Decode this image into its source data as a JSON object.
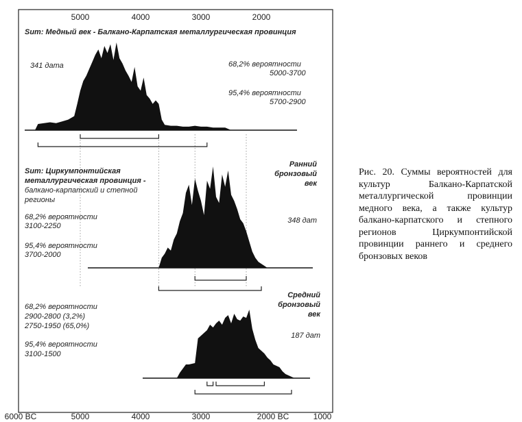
{
  "chart_data": {
    "type": "area",
    "x_axis": {
      "top_ticks": [
        5000,
        4000,
        3000,
        2000
      ],
      "bottom_ticks": [
        "6000 BC",
        "5000",
        "4000",
        "3000",
        "2000 BC",
        "1000"
      ],
      "range": [
        6000,
        1000
      ]
    },
    "color": "#111111",
    "panels": [
      {
        "title_lines": [
          "Sum: Медный век - Балкано-Карпатская металлургическая провинция"
        ],
        "side_label_lines": [],
        "count": "341 дата",
        "ranges_text": [
          "68,2% вероятности",
          "5000-3700",
          "",
          "95,4% вероятности",
          "5700-2900"
        ],
        "x": [
          5750,
          5700,
          5600,
          5500,
          5400,
          5300,
          5200,
          5100,
          5050,
          5000,
          4950,
          4900,
          4850,
          4800,
          4750,
          4700,
          4650,
          4600,
          4550,
          4500,
          4450,
          4400,
          4350,
          4300,
          4250,
          4200,
          4150,
          4100,
          4050,
          4000,
          3950,
          3900,
          3850,
          3800,
          3750,
          3700,
          3650,
          3600,
          3500,
          3400,
          3300,
          3200,
          3100,
          3000,
          2900,
          2800,
          2700,
          2600,
          2500
        ],
        "y": [
          0,
          0.07,
          0.08,
          0.09,
          0.08,
          0.1,
          0.12,
          0.16,
          0.3,
          0.45,
          0.56,
          0.62,
          0.7,
          0.78,
          0.86,
          0.92,
          0.82,
          0.96,
          0.88,
          0.98,
          0.8,
          1.0,
          0.82,
          0.76,
          0.68,
          0.62,
          0.55,
          0.72,
          0.5,
          0.45,
          0.6,
          0.4,
          0.36,
          0.3,
          0.34,
          0.3,
          0.12,
          0.06,
          0.05,
          0.05,
          0.04,
          0.04,
          0.05,
          0.04,
          0.04,
          0.03,
          0.03,
          0.03,
          0.0
        ],
        "brackets": [
          {
            "from": 5000,
            "to": 3700
          },
          {
            "from": 5700,
            "to": 2900
          }
        ]
      },
      {
        "title_lines": [
          "Sum: Циркумпонтийская",
          "металлургическая провинция -",
          "балкано-карпатский и степной",
          "регионы"
        ],
        "side_label_lines": [
          "Ранний",
          "бронзовый",
          "век"
        ],
        "count": "348 дат",
        "ranges_text": [
          "68,2% вероятности",
          "3100-2250",
          "",
          "95,4% вероятности",
          "3700-2000"
        ],
        "x": [
          3700,
          3650,
          3600,
          3550,
          3500,
          3450,
          3400,
          3350,
          3300,
          3250,
          3200,
          3150,
          3100,
          3050,
          3000,
          2950,
          2900,
          2850,
          2800,
          2750,
          2700,
          2650,
          2600,
          2550,
          2500,
          2450,
          2400,
          2350,
          2300,
          2250,
          2200,
          2150,
          2100,
          2050,
          2000,
          1950,
          1900
        ],
        "y": [
          0,
          0.1,
          0.14,
          0.2,
          0.17,
          0.28,
          0.34,
          0.46,
          0.54,
          0.74,
          0.82,
          0.62,
          0.88,
          0.76,
          0.66,
          0.52,
          0.86,
          0.78,
          1.0,
          0.7,
          0.64,
          0.92,
          0.8,
          0.96,
          0.72,
          0.66,
          0.58,
          0.48,
          0.44,
          0.36,
          0.26,
          0.16,
          0.1,
          0.06,
          0.04,
          0.02,
          0.0
        ],
        "brackets": [
          {
            "from": 3100,
            "to": 2250
          },
          {
            "from": 3700,
            "to": 2000
          }
        ]
      },
      {
        "title_lines": [],
        "side_label_lines": [
          "Средний",
          "бронзовый",
          "век"
        ],
        "count": "187 дат",
        "ranges_text": [
          "68,2% вероятности",
          "2900-2800 (3,2%)",
          "2750-1950 (65,0%)",
          "",
          "95,4% вероятности",
          "3100-1500"
        ],
        "x": [
          3400,
          3350,
          3300,
          3250,
          3200,
          3150,
          3100,
          3050,
          3000,
          2950,
          2900,
          2850,
          2800,
          2750,
          2700,
          2650,
          2600,
          2550,
          2500,
          2450,
          2400,
          2350,
          2300,
          2250,
          2200,
          2150,
          2100,
          2050,
          2000,
          1950,
          1900,
          1850,
          1800,
          1750,
          1700,
          1650,
          1600,
          1550,
          1500,
          1450
        ],
        "y": [
          0,
          0.08,
          0.14,
          0.2,
          0.2,
          0.21,
          0.22,
          0.58,
          0.62,
          0.66,
          0.7,
          0.78,
          0.74,
          0.8,
          0.84,
          0.78,
          0.88,
          0.92,
          0.8,
          0.94,
          0.86,
          0.84,
          0.9,
          0.88,
          1.0,
          0.72,
          0.56,
          0.44,
          0.4,
          0.36,
          0.3,
          0.26,
          0.2,
          0.18,
          0.16,
          0.1,
          0.06,
          0.04,
          0.02,
          0.0
        ],
        "brackets": [
          {
            "from": 2900,
            "to": 2800
          },
          {
            "from": 2750,
            "to": 1950
          },
          {
            "from": 3100,
            "to": 1500
          }
        ]
      }
    ],
    "reference_lines": [
      5000,
      3700,
      3100,
      2250
    ]
  },
  "caption": "Рис. 20. Суммы вероятностей для культур Балкано-Карпатской металлургической провинции медного века, а также культур балкано-карпатского и степного регионов Циркумпонтийской провинции раннего и среднего бронзовых веков"
}
